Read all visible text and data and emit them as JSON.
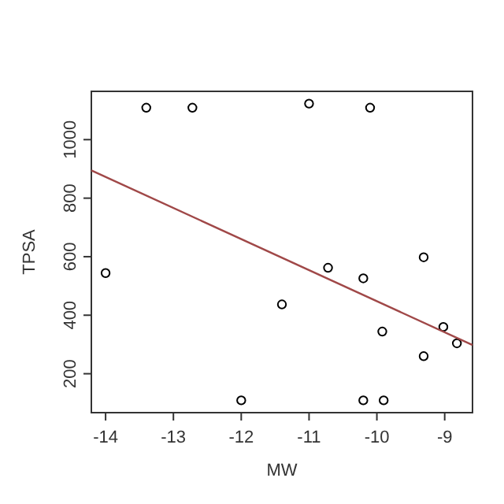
{
  "chart_data": {
    "type": "scatter",
    "xlabel": "MW",
    "ylabel": "TPSA",
    "xlim": [
      -14.21,
      -8.59
    ],
    "ylim": [
      67,
      1165
    ],
    "xticks": [
      -14,
      -13,
      -12,
      -11,
      -10,
      -9
    ],
    "yticks": [
      200,
      400,
      600,
      800,
      1000
    ],
    "grid": false,
    "series": [
      {
        "marker": "circle",
        "color": "#000000",
        "x": [
          -14.0,
          -13.4,
          -12.72,
          -11.0,
          -10.1,
          -12.0,
          -11.4,
          -10.72,
          -10.2,
          -10.2,
          -9.9,
          -9.92,
          -9.31,
          -9.31,
          -9.02,
          -8.82
        ],
        "values": [
          544,
          1109,
          1109,
          1123,
          1109,
          109,
          437,
          562,
          526,
          109,
          109,
          344,
          598,
          260,
          360,
          304
        ]
      },
      {
        "type": "line",
        "color": "#a04848",
        "x": [
          -14.21,
          -8.59
        ],
        "values": [
          895,
          298
        ]
      }
    ]
  }
}
